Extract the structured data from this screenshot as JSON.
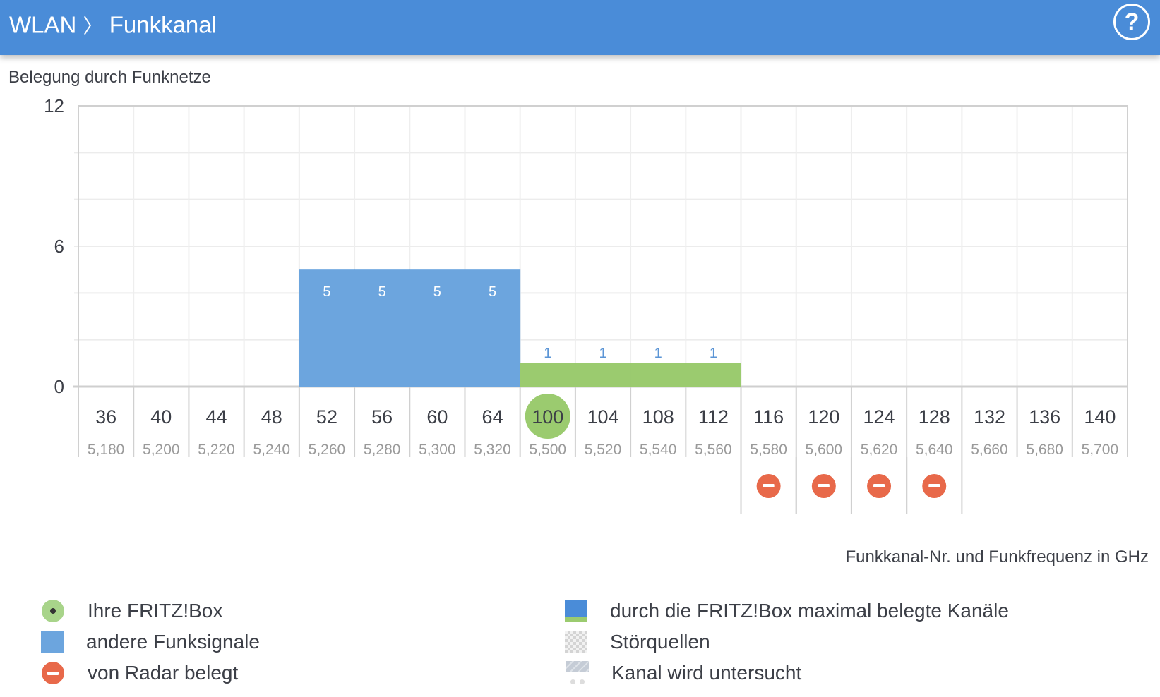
{
  "header": {
    "section": "WLAN",
    "separator": "〉",
    "page": "Funkkanal",
    "help_icon": "help-circle-icon"
  },
  "subtitle": "Belegung durch Funknetze",
  "caption": "Funkkanal-Nr. und Funkfrequenz in GHz",
  "colors": {
    "header": "#4a8cd8",
    "other": "#6ca5de",
    "fritzbox": "#9bcb6f",
    "radar": "#e8694a",
    "own_channel": "#9bcb6f"
  },
  "chart_data": {
    "type": "bar",
    "title": "Belegung durch Funknetze",
    "xlabel": "Funkkanal-Nr. und Funkfrequenz in GHz",
    "ylabel": "",
    "ylim": [
      0,
      12
    ],
    "yticks": [
      0,
      6,
      12
    ],
    "grid_step": 2,
    "grid": true,
    "categories": [
      "36",
      "40",
      "44",
      "48",
      "52",
      "56",
      "60",
      "64",
      "100",
      "104",
      "108",
      "112",
      "116",
      "120",
      "124",
      "128",
      "132",
      "136",
      "140"
    ],
    "frequencies": [
      "5,180",
      "5,200",
      "5,220",
      "5,240",
      "5,260",
      "5,280",
      "5,300",
      "5,320",
      "5,500",
      "5,520",
      "5,540",
      "5,560",
      "5,580",
      "5,600",
      "5,620",
      "5,640",
      "5,660",
      "5,680",
      "5,700"
    ],
    "series": [
      {
        "name": "andere Funksignale",
        "values": [
          0,
          0,
          0,
          0,
          5,
          5,
          5,
          5,
          0,
          0,
          0,
          0,
          0,
          0,
          0,
          0,
          0,
          0,
          0
        ]
      },
      {
        "name": "durch die FRITZ!Box maximal belegte Kanäle",
        "values": [
          0,
          0,
          0,
          0,
          0,
          0,
          0,
          0,
          1,
          1,
          1,
          1,
          0,
          0,
          0,
          0,
          0,
          0,
          0
        ]
      }
    ],
    "own_channel": "100",
    "radar_channels": [
      "116",
      "120",
      "124",
      "128"
    ]
  },
  "legend": [
    {
      "label": "Ihre FRITZ!Box",
      "icon": "fritzbox-dot-icon"
    },
    {
      "label": "andere Funksignale",
      "icon": "blue-square-icon"
    },
    {
      "label": "von Radar belegt",
      "icon": "radar-icon"
    },
    {
      "label": "durch die FRITZ!Box maximal belegte Kanäle",
      "icon": "blue-green-square-icon"
    },
    {
      "label": "Störquellen",
      "icon": "checker-icon"
    },
    {
      "label": "Kanal wird untersucht",
      "icon": "hatched-icon"
    }
  ]
}
